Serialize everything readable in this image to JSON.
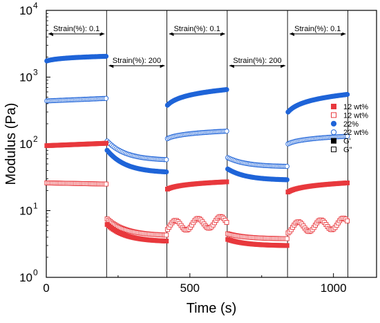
{
  "chart_data": {
    "type": "scatter",
    "title": "",
    "xlabel": "Time (s)",
    "ylabel": "Modulus (Pa)",
    "xlim": [
      0,
      1150
    ],
    "ylim": [
      1,
      10000
    ],
    "y_scale": "log",
    "grid": false,
    "legend_position": "right",
    "x_ticks": [
      {
        "value": 0,
        "label": "0"
      },
      {
        "value": 500,
        "label": "500"
      },
      {
        "value": 1000,
        "label": "1000"
      }
    ],
    "y_ticks": [
      {
        "value": 1,
        "base": "10",
        "exp": "0"
      },
      {
        "value": 10,
        "base": "10",
        "exp": "1"
      },
      {
        "value": 100,
        "base": "10",
        "exp": "2"
      },
      {
        "value": 1000,
        "base": "10",
        "exp": "3"
      },
      {
        "value": 10000,
        "base": "10",
        "exp": "4"
      }
    ],
    "phase_boundaries": [
      210,
      420,
      630,
      840,
      1050
    ],
    "annotations": [
      {
        "text": "Strain(%): 0.1",
        "x_from": 0,
        "x_to": 210
      },
      {
        "text": "Strain(%): 200",
        "x_from": 210,
        "x_to": 420
      },
      {
        "text": "Strain(%): 0.1",
        "x_from": 420,
        "x_to": 630
      },
      {
        "text": "Strain(%): 200",
        "x_from": 630,
        "x_to": 840
      },
      {
        "text": "Strain(%): 0.1",
        "x_from": 840,
        "x_to": 1050
      }
    ],
    "legend": [
      {
        "label": "12 wt%",
        "color": "#e8383d",
        "marker": "square",
        "filled": true
      },
      {
        "label": "12 wt%",
        "color": "#e8383d",
        "marker": "square",
        "filled": false
      },
      {
        "label": "22%",
        "color": "#1f64d8",
        "marker": "circle",
        "filled": true
      },
      {
        "label": "22 wt%",
        "color": "#1f64d8",
        "marker": "circle",
        "filled": false
      },
      {
        "label": "G'",
        "color": "#000000",
        "marker": "square",
        "filled": true
      },
      {
        "label": "G\"",
        "color": "#000000",
        "marker": "square",
        "filled": false
      }
    ],
    "series": [
      {
        "name": "22% G'",
        "color": "#1f64d8",
        "marker": "circle",
        "filled": true,
        "segments": [
          {
            "x_start": 2,
            "x_end": 208,
            "y_start": 1750,
            "y_end": 2050,
            "shape": "log"
          },
          {
            "x_start": 212,
            "x_end": 418,
            "y_start": 80,
            "y_end": 38,
            "shape": "exp"
          },
          {
            "x_start": 422,
            "x_end": 628,
            "y_start": 380,
            "y_end": 650,
            "shape": "log"
          },
          {
            "x_start": 632,
            "x_end": 838,
            "y_start": 42,
            "y_end": 29,
            "shape": "exp"
          },
          {
            "x_start": 842,
            "x_end": 1048,
            "y_start": 300,
            "y_end": 550,
            "shape": "log"
          }
        ]
      },
      {
        "name": "22 wt% G\"",
        "color": "#1f64d8",
        "marker": "circle",
        "filled": false,
        "segments": [
          {
            "x_start": 2,
            "x_end": 208,
            "y_start": 440,
            "y_end": 480,
            "shape": "linear"
          },
          {
            "x_start": 212,
            "x_end": 418,
            "y_start": 110,
            "y_end": 58,
            "shape": "exp"
          },
          {
            "x_start": 422,
            "x_end": 628,
            "y_start": 120,
            "y_end": 155,
            "shape": "log"
          },
          {
            "x_start": 632,
            "x_end": 838,
            "y_start": 62,
            "y_end": 46,
            "shape": "exp"
          },
          {
            "x_start": 842,
            "x_end": 1048,
            "y_start": 100,
            "y_end": 130,
            "shape": "log"
          }
        ]
      },
      {
        "name": "12 wt% G'",
        "color": "#e8383d",
        "marker": "square",
        "filled": true,
        "segments": [
          {
            "x_start": 2,
            "x_end": 208,
            "y_start": 94,
            "y_end": 102,
            "shape": "linear"
          },
          {
            "x_start": 212,
            "x_end": 418,
            "y_start": 6.2,
            "y_end": 3.5,
            "shape": "exp"
          },
          {
            "x_start": 422,
            "x_end": 628,
            "y_start": 21,
            "y_end": 27,
            "shape": "log"
          },
          {
            "x_start": 632,
            "x_end": 838,
            "y_start": 3.7,
            "y_end": 3.0,
            "shape": "exp"
          },
          {
            "x_start": 842,
            "x_end": 1048,
            "y_start": 19,
            "y_end": 26,
            "shape": "log"
          }
        ]
      },
      {
        "name": "12 wt% G\"",
        "color": "#e8383d",
        "marker": "square",
        "filled": false,
        "segments": [
          {
            "x_start": 2,
            "x_end": 208,
            "y_start": 26,
            "y_end": 25,
            "shape": "linear"
          },
          {
            "x_start": 212,
            "x_end": 418,
            "y_start": 7.5,
            "y_end": 4.3,
            "shape": "exp"
          },
          {
            "x_start": 422,
            "x_end": 628,
            "y_start": 5.8,
            "y_end": 6.9,
            "shape": "scatter"
          },
          {
            "x_start": 632,
            "x_end": 838,
            "y_start": 4.5,
            "y_end": 3.8,
            "shape": "exp"
          },
          {
            "x_start": 842,
            "x_end": 1048,
            "y_start": 5.5,
            "y_end": 6.5,
            "shape": "scatter"
          }
        ]
      }
    ]
  }
}
